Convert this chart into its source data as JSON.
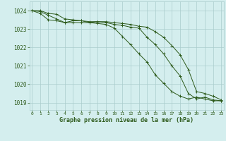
{
  "hours": [
    0,
    1,
    2,
    3,
    4,
    5,
    6,
    7,
    8,
    9,
    10,
    11,
    12,
    13,
    14,
    15,
    16,
    17,
    18,
    19,
    20,
    21,
    22,
    23
  ],
  "line1": [
    1024.0,
    1024.0,
    1023.85,
    1023.8,
    1023.55,
    1023.5,
    1023.45,
    1023.35,
    1023.3,
    1023.25,
    1023.05,
    1022.6,
    1022.15,
    1021.65,
    1021.2,
    1020.5,
    1020.05,
    1019.6,
    1019.35,
    1019.2,
    1019.3,
    1019.2,
    1019.1,
    1019.1
  ],
  "line2": [
    1024.0,
    1023.85,
    1023.5,
    1023.45,
    1023.35,
    1023.45,
    1023.45,
    1023.4,
    1023.4,
    1023.35,
    1023.25,
    1023.2,
    1023.1,
    1023.05,
    1022.55,
    1022.15,
    1021.65,
    1021.0,
    1020.45,
    1019.5,
    1019.2,
    1019.3,
    1019.15,
    1019.1
  ],
  "line3": [
    1024.0,
    1023.95,
    1023.75,
    1023.55,
    1023.35,
    1023.35,
    1023.35,
    1023.35,
    1023.4,
    1023.4,
    1023.35,
    1023.3,
    1023.25,
    1023.15,
    1023.1,
    1022.85,
    1022.55,
    1022.1,
    1021.6,
    1020.8,
    1019.6,
    1019.5,
    1019.35,
    1019.15
  ],
  "bg_color": "#d4eeee",
  "grid_color": "#aacccc",
  "line_color": "#2d5a1b",
  "xlabel": "Graphe pression niveau de la mer (hPa)",
  "ylim_min": 1018.6,
  "ylim_max": 1024.5,
  "yticks": [
    1019,
    1020,
    1021,
    1022,
    1023,
    1024
  ],
  "xtick_labels": [
    "0",
    "1",
    "2",
    "3",
    "4",
    "5",
    "6",
    "7",
    "8",
    "9",
    "10",
    "11",
    "12",
    "13",
    "14",
    "15",
    "16",
    "17",
    "18",
    "19",
    "20",
    "21",
    "22",
    "23"
  ]
}
